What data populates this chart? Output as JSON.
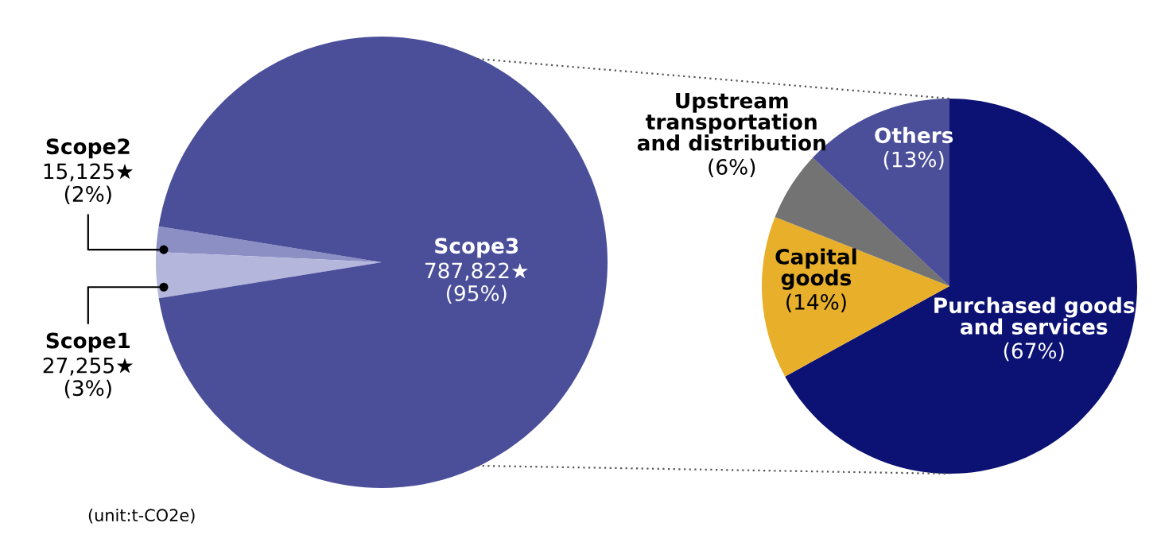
{
  "chart_data": [
    {
      "type": "pie",
      "categories": [
        "Scope3",
        "Scope2",
        "Scope1"
      ],
      "values": [
        787822,
        15125,
        27255
      ],
      "value_labels": [
        "787,822★\n(95%)",
        "15,125★\n(2%)",
        "27,255★\n(3%)"
      ],
      "colors": [
        "#4b4f9a",
        "#8c8fc4",
        "#b4b6dc"
      ],
      "annotations": [
        "(unit:t-CO2e)"
      ]
    },
    {
      "type": "pie",
      "categories": [
        "Purchased goods\nand services",
        "Capital\ngoods",
        "Upstream\ntransportation\nand distribution",
        "Others"
      ],
      "values": [
        67,
        14,
        6,
        13
      ],
      "value_labels": [
        "(67%)",
        "(14%)",
        "(6%)",
        "(13%)"
      ],
      "colors": [
        "#0c1273",
        "#e8b02a",
        "#737373",
        "#4b4f9a"
      ]
    }
  ]
}
